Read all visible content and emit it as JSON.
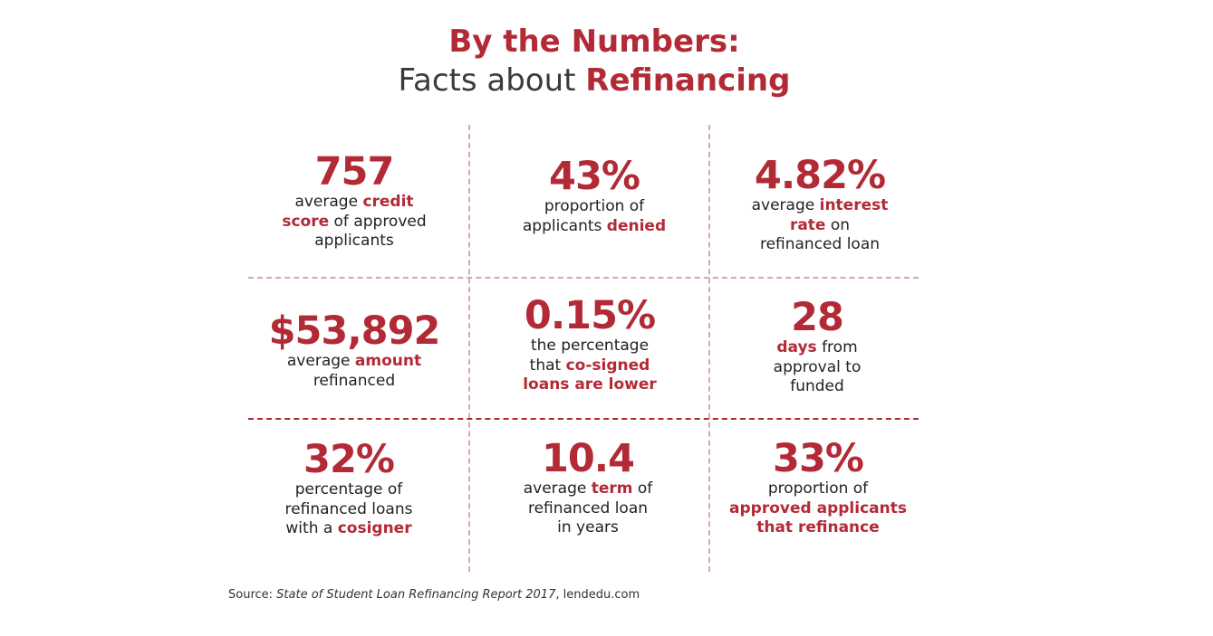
{
  "title": {
    "line1": "By the Numbers:",
    "line2_plain": "Facts about ",
    "line2_accent": "Refinancing"
  },
  "colors": {
    "accent": "#b22a36",
    "text": "#222222",
    "divider": "#d9a6ab"
  },
  "cells": [
    {
      "number": "757",
      "lines": [
        [
          {
            "t": "average "
          },
          {
            "t": "credit",
            "hl": true
          }
        ],
        [
          {
            "t": "score",
            "hl": true
          },
          {
            "t": " of approved"
          }
        ],
        [
          {
            "t": "applicants"
          }
        ]
      ]
    },
    {
      "number": "43%",
      "lines": [
        [
          {
            "t": "proportion of"
          }
        ],
        [
          {
            "t": "applicants "
          },
          {
            "t": "denied",
            "hl": true
          }
        ]
      ]
    },
    {
      "number": "4.82%",
      "lines": [
        [
          {
            "t": "average "
          },
          {
            "t": "interest",
            "hl": true
          }
        ],
        [
          {
            "t": "rate",
            "hl": true
          },
          {
            "t": " on"
          }
        ],
        [
          {
            "t": "refinanced loan"
          }
        ]
      ]
    },
    {
      "number": "$53,892",
      "lines": [
        [
          {
            "t": "average "
          },
          {
            "t": "amount",
            "hl": true
          }
        ],
        [
          {
            "t": "refinanced"
          }
        ]
      ]
    },
    {
      "number": "0.15%",
      "lines": [
        [
          {
            "t": "the percentage"
          }
        ],
        [
          {
            "t": "that "
          },
          {
            "t": "co-signed",
            "hl": true
          }
        ],
        [
          {
            "t": "loans are lower",
            "hl": true
          }
        ]
      ]
    },
    {
      "number": "28",
      "lines": [
        [
          {
            "t": "days",
            "hl": true
          },
          {
            "t": " from"
          }
        ],
        [
          {
            "t": "approval to"
          }
        ],
        [
          {
            "t": "funded"
          }
        ]
      ]
    },
    {
      "number": "32%",
      "lines": [
        [
          {
            "t": "percentage of"
          }
        ],
        [
          {
            "t": "refinanced loans"
          }
        ],
        [
          {
            "t": "with a "
          },
          {
            "t": "cosigner",
            "hl": true
          }
        ]
      ]
    },
    {
      "number": "10.4",
      "lines": [
        [
          {
            "t": "average "
          },
          {
            "t": "term",
            "hl": true
          },
          {
            "t": " of"
          }
        ],
        [
          {
            "t": "refinanced loan"
          }
        ],
        [
          {
            "t": "in years"
          }
        ]
      ]
    },
    {
      "number": "33%",
      "lines": [
        [
          {
            "t": "proportion of"
          }
        ],
        [
          {
            "t": "approved applicants",
            "hl": true
          }
        ],
        [
          {
            "t": "that refinance",
            "hl": true
          }
        ]
      ]
    }
  ],
  "source": {
    "prefix": "Source: ",
    "title": "State of Student Loan Refinancing Report 2017",
    "suffix": ", lendedu.com"
  }
}
